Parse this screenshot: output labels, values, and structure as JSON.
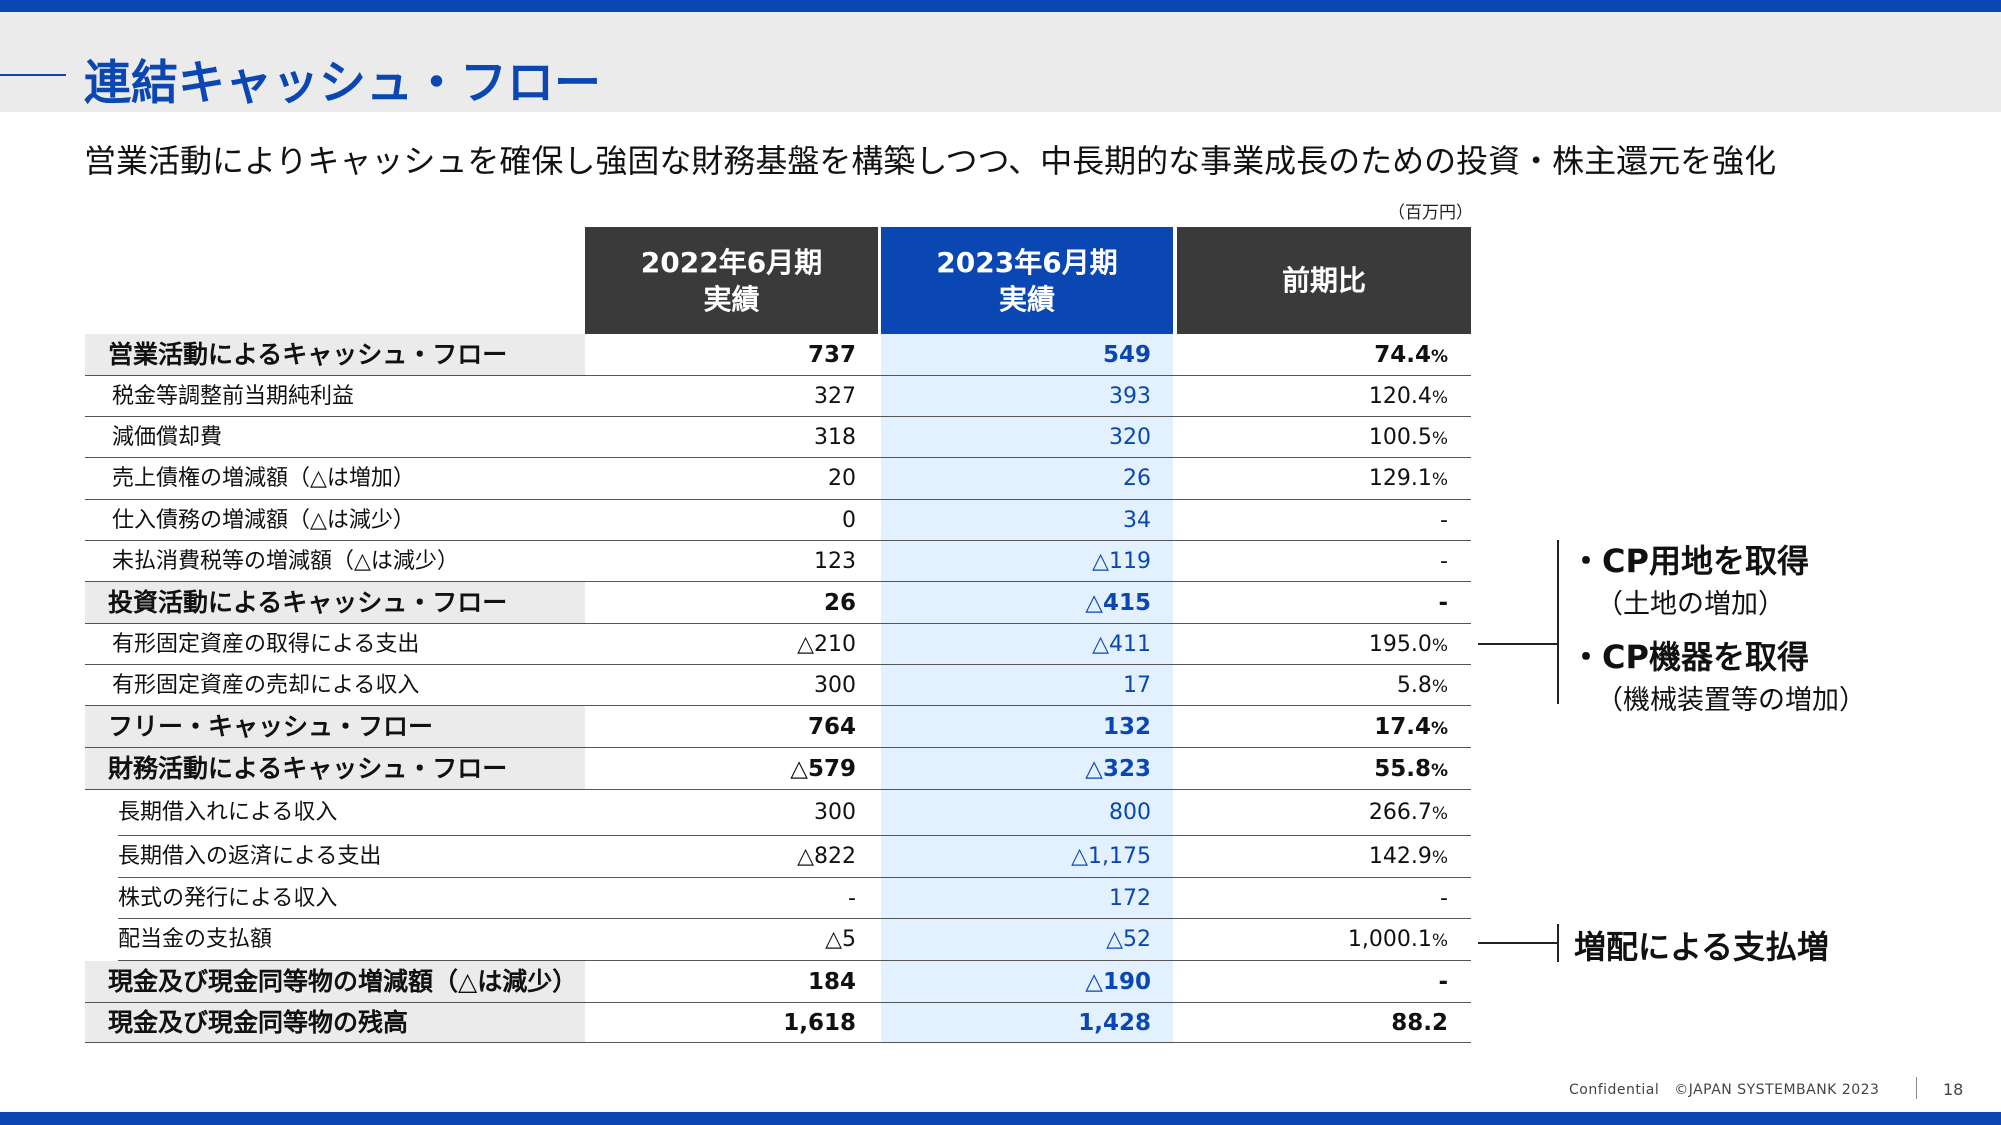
{
  "title": "連結キャッシュ・フロー",
  "subtitle": "営業活動によりキャッシュを確保し強固な財務基盤を構築しつつ、中長期的な事業成長のための投資・株主還元を強化",
  "unit": "（百万円）",
  "columns": [
    {
      "line1": "2022年6月期",
      "line2": "実績"
    },
    {
      "line1": "2023年6月期",
      "line2": "実績"
    },
    {
      "line1": "前期比",
      "line2": ""
    }
  ],
  "rows": [
    {
      "label": "営業活動によるキャッシュ・フロー",
      "v1": "737",
      "v2": "549",
      "v3": "74.4",
      "v3_unit": "%"
    },
    {
      "label": "税金等調整前当期純利益",
      "v1": "327",
      "v2": "393",
      "v3": "120.4",
      "v3_unit": "%"
    },
    {
      "label": "減価償却費",
      "v1": "318",
      "v2": "320",
      "v3": "100.5",
      "v3_unit": "%"
    },
    {
      "label": "売上債権の増減額（△は増加）",
      "v1": "20",
      "v2": "26",
      "v3": "129.1",
      "v3_unit": "%"
    },
    {
      "label": "仕入債務の増減額（△は減少）",
      "v1": "0",
      "v2": "34",
      "v3": "-",
      "v3_unit": ""
    },
    {
      "label": "未払消費税等の増減額（△は減少）",
      "v1": "123",
      "v2": "△119",
      "v3": "-",
      "v3_unit": ""
    },
    {
      "label": "投資活動によるキャッシュ・フロー",
      "v1": "26",
      "v2": "△415",
      "v3": "-",
      "v3_unit": ""
    },
    {
      "label": "有形固定資産の取得による支出",
      "v1": "△210",
      "v2": "△411",
      "v3": "195.0",
      "v3_unit": "%"
    },
    {
      "label": "有形固定資産の売却による収入",
      "v1": "300",
      "v2": "17",
      "v3": "5.8",
      "v3_unit": "%"
    },
    {
      "label": "フリー・キャッシュ・フロー",
      "v1": "764",
      "v2": "132",
      "v3": "17.4",
      "v3_unit": "%"
    },
    {
      "label": "財務活動によるキャッシュ・フロー",
      "v1": "△579",
      "v2": "△323",
      "v3": "55.8",
      "v3_unit": "%"
    },
    {
      "label": "長期借入れによる収入",
      "v1": "300",
      "v2": "800",
      "v3": "266.7",
      "v3_unit": "%"
    },
    {
      "label": "長期借入の返済による支出",
      "v1": "△822",
      "v2": "△1,175",
      "v3": "142.9",
      "v3_unit": "%"
    },
    {
      "label": "株式の発行による収入",
      "v1": "-",
      "v2": "172",
      "v3": "-",
      "v3_unit": ""
    },
    {
      "label": "配当金の支払額",
      "v1": "△5",
      "v2": "△52",
      "v3": "1,000.1",
      "v3_unit": "%"
    },
    {
      "label": "現金及び現金同等物の増減額（△は減少）",
      "v1": "184",
      "v2": "△190",
      "v3": "-",
      "v3_unit": ""
    },
    {
      "label": "現金及び現金同等物の残高",
      "v1": "1,618",
      "v2": "1,428",
      "v3": "88.2",
      "v3_unit": ""
    }
  ],
  "annotations": {
    "investment": {
      "bullet": "・",
      "item1": "CP用地を取得",
      "item1_sub": "（土地の増加）",
      "item2": "CP機器を取得",
      "item2_sub": "（機械装置等の増加）"
    },
    "dividend": "増配による支払増"
  },
  "footer": {
    "confidential": "Confidential",
    "copyright": "©JAPAN SYSTEMBANK 2023",
    "page": "18"
  }
}
